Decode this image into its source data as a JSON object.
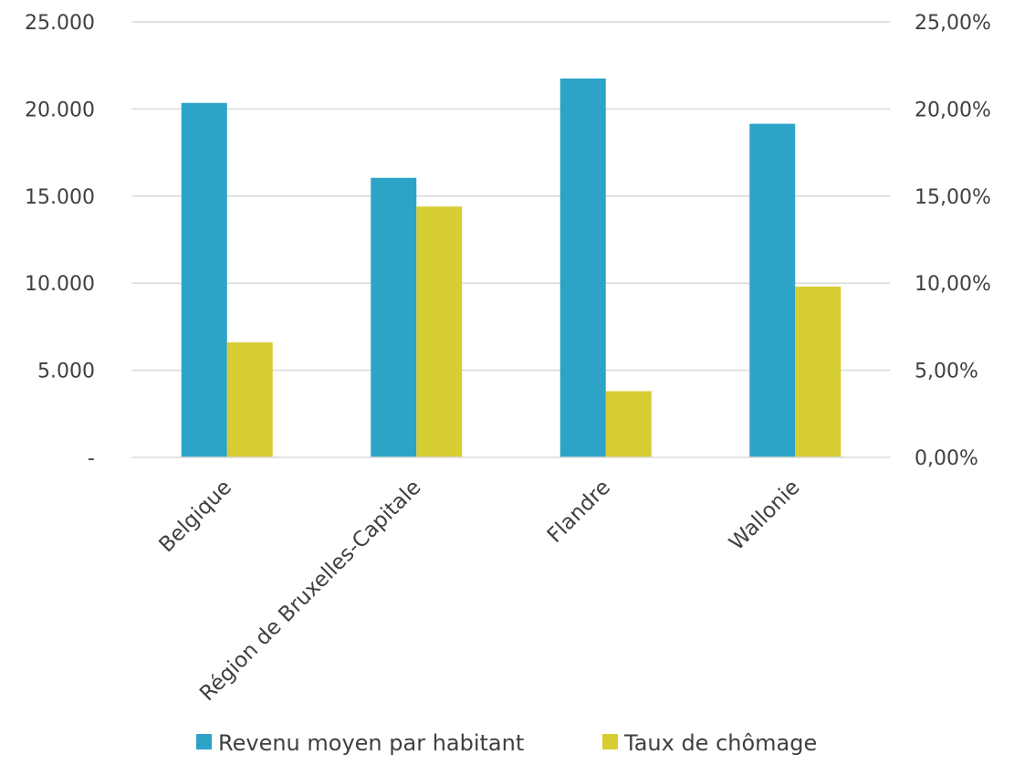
{
  "chart_data": {
    "type": "bar",
    "categories": [
      "Belgique",
      "Région de Bruxelles-Capitale",
      "Flandre",
      "Wallonie"
    ],
    "series": [
      {
        "name": "Revenu moyen par habitant",
        "axis": "left",
        "values": [
          20350,
          16050,
          21750,
          19150
        ],
        "color": "#2CA3C7"
      },
      {
        "name": "Taux de chômage",
        "axis": "right",
        "values": [
          6.6,
          14.4,
          3.8,
          9.8
        ],
        "color": "#D6CD33"
      }
    ],
    "y_left": {
      "min": 0,
      "max": 25000,
      "ticks": [
        0,
        5000,
        10000,
        15000,
        20000,
        25000
      ],
      "tick_labels": [
        "-",
        "5.000",
        "10.000",
        "15.000",
        "20.000",
        "25.000"
      ]
    },
    "y_right": {
      "min": 0,
      "max": 25,
      "ticks": [
        0,
        5,
        10,
        15,
        20,
        25
      ],
      "tick_labels": [
        "0,00%",
        "5,00%",
        "10,00%",
        "15,00%",
        "20,00%",
        "25,00%"
      ]
    },
    "grid": true,
    "legend_position": "bottom",
    "title": "",
    "xlabel": "",
    "ylabel": ""
  }
}
